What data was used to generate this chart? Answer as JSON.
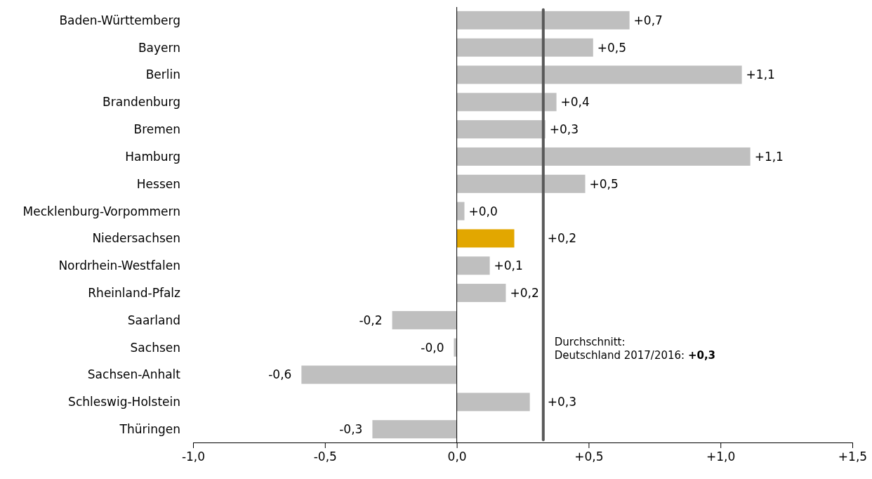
{
  "chart_data": {
    "type": "bar",
    "orientation": "horizontal",
    "categories": [
      "Baden-Württemberg",
      "Bayern",
      "Berlin",
      "Brandenburg",
      "Bremen",
      "Hamburg",
      "Hessen",
      "Mecklenburg-Vorpommern",
      "Niedersachsen",
      "Nordrhein-Westfalen",
      "Rheinland-Pfalz",
      "Saarland",
      "Sachsen",
      "Sachsen-Anhalt",
      "Schleswig-Holstein",
      "Thüringen"
    ],
    "values": [
      0.655,
      0.517,
      1.081,
      0.378,
      0.336,
      1.113,
      0.487,
      0.029,
      0.218,
      0.125,
      0.186,
      -0.245,
      -0.011,
      -0.589,
      0.277,
      -0.32
    ],
    "value_labels": [
      "+0,7",
      "+0,5",
      "+1,1",
      "+0,4",
      "+0,3",
      "+1,1",
      "+0,5",
      "+0,0",
      "+0,2",
      "+0,1",
      "+0,2",
      "-0,2",
      "-0,0",
      "-0,6",
      "+0,3",
      "-0,3"
    ],
    "colors": [
      "#bfbfbf",
      "#bfbfbf",
      "#bfbfbf",
      "#bfbfbf",
      "#bfbfbf",
      "#bfbfbf",
      "#bfbfbf",
      "#bfbfbf",
      "#e2a700",
      "#bfbfbf",
      "#bfbfbf",
      "#bfbfbf",
      "#bfbfbf",
      "#bfbfbf",
      "#bfbfbf",
      "#bfbfbf"
    ],
    "xlim": [
      -1,
      1.5
    ],
    "xticks": [
      {
        "value": -1,
        "label": "-1,0"
      },
      {
        "value": -0.5,
        "label": "-0,5"
      },
      {
        "value": 0,
        "label": "0,0"
      },
      {
        "value": 0.5,
        "label": "+0,5"
      },
      {
        "value": 1,
        "label": "+1,0"
      },
      {
        "value": 1.5,
        "label": "+1,5"
      }
    ],
    "ref_lines": [
      {
        "axis": "x",
        "value": 0.328,
        "label": "Durchschnitt:\nDeutschland 2017/2016: +0,3",
        "color": "#595959"
      }
    ]
  }
}
